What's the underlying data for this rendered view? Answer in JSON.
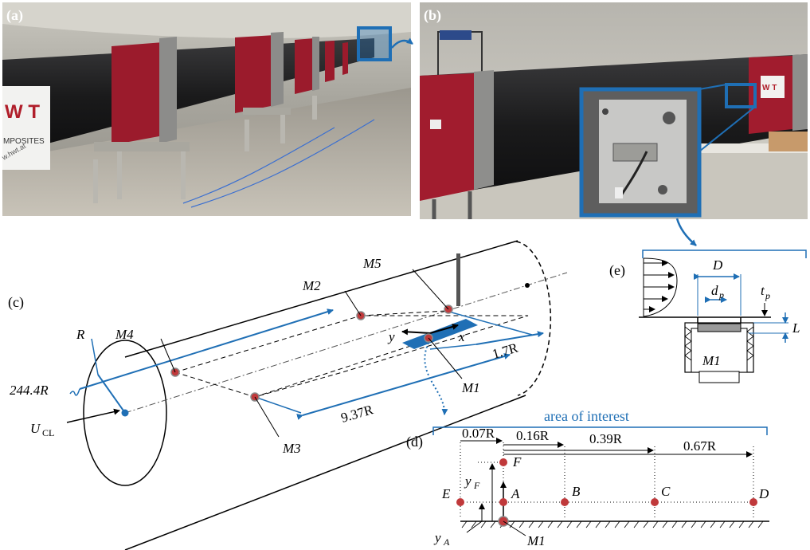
{
  "panels": {
    "a": "(a)",
    "b": "(b)",
    "c": "(c)",
    "d": "(d)",
    "e": "(e)"
  },
  "photo_a": {
    "sign_letters": "W T",
    "sign_text": "MPOSITES",
    "sign_url": "w.hwt.at"
  },
  "photo_b": {
    "sign_letters": "W T"
  },
  "pipe": {
    "radius_label": "R",
    "length_label": "244.4R",
    "velocity_label": "U",
    "velocity_sub": "CL",
    "dist_long": "9.37R",
    "dist_short": "1.7R",
    "x_axis": "x",
    "y_axis": "y",
    "sensors": {
      "M1": "M1",
      "M2": "M2",
      "M3": "M3",
      "M4": "M4",
      "M5": "M5"
    }
  },
  "detail_e": {
    "D": "D",
    "dp": "d",
    "dp_sub": "p",
    "tp": "t",
    "tp_sub": "p",
    "L": "L",
    "sensor": "M1"
  },
  "detail_d": {
    "area_title": "area of interest",
    "spacings": [
      "0.07R",
      "0.16R",
      "0.39R",
      "0.67R"
    ],
    "points": [
      "E",
      "A",
      "B",
      "C",
      "D",
      "F"
    ],
    "yF": "y",
    "yF_sub": "F",
    "yA": "y",
    "yA_sub": "A",
    "sensor": "M1"
  },
  "colors": {
    "accent": "#1f6fb5",
    "marker": "#c0393b",
    "pipe_red": "#9b1b2c",
    "pipe_black": "#1d1d1f"
  }
}
